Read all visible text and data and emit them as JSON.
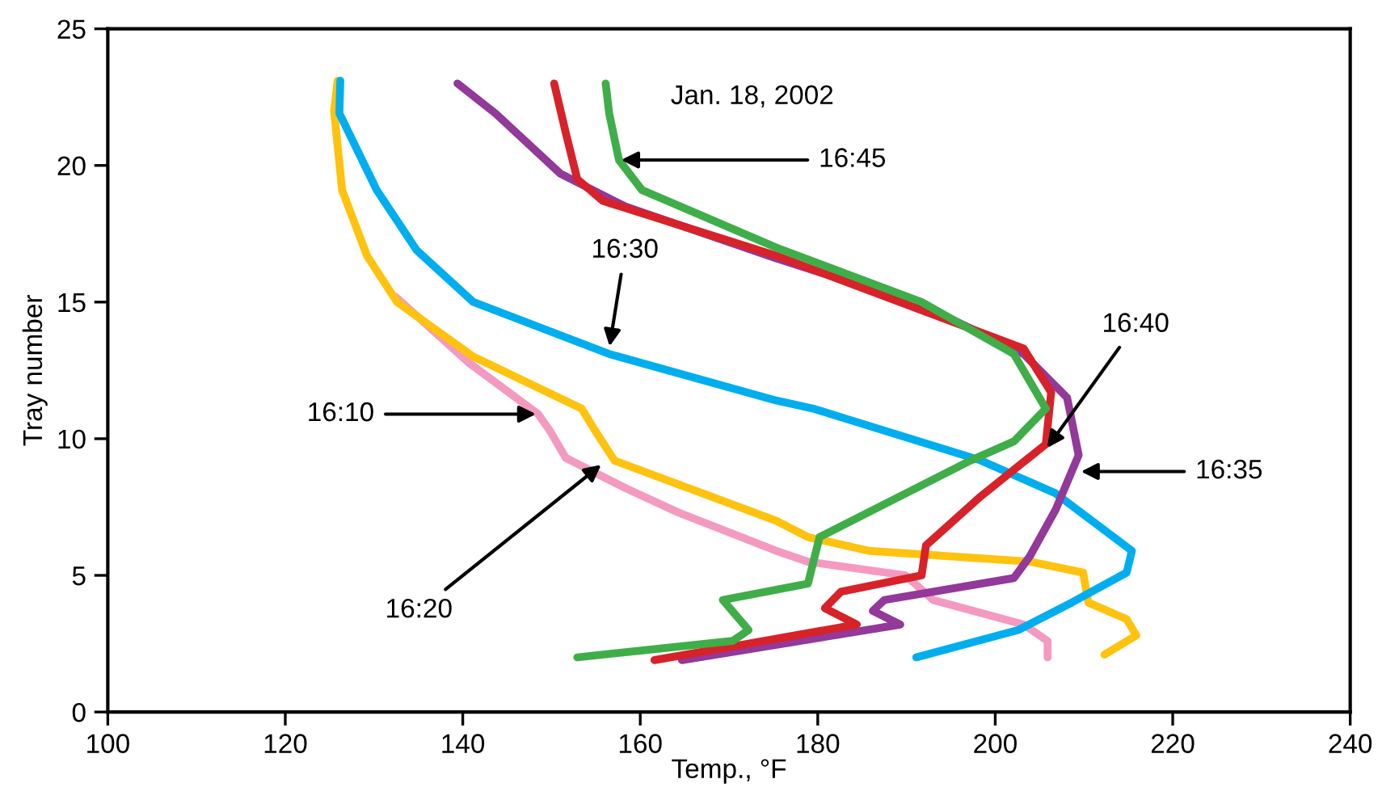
{
  "chart_data": {
    "type": "line",
    "xlabel": "Temp., °F",
    "ylabel": "Tray number",
    "xlim": [
      100,
      240
    ],
    "xticks": [
      100,
      120,
      140,
      160,
      180,
      200,
      220,
      240
    ],
    "ylim": [
      0,
      25
    ],
    "yticks": [
      0,
      5,
      10,
      15,
      20,
      25
    ],
    "grid": false,
    "legend": false,
    "marker": "none",
    "line_style": "solid",
    "series": [
      {
        "color": "#f49ac1",
        "x": [
          132.4,
          140.6,
          148.5,
          149.8,
          151.6,
          158.3,
          164.3,
          175.3,
          178.9,
          189.9,
          193.0,
          203.2,
          205.9,
          205.9
        ],
        "values": [
          15.2,
          12.8,
          10.9,
          10.3,
          9.3,
          8.2,
          7.3,
          5.9,
          5.5,
          5.0,
          4.1,
          3.2,
          2.6,
          2.0
        ]
      },
      {
        "color": "#ffc20e",
        "x": [
          125.9,
          125.5,
          126.4,
          129.2,
          132.6,
          141.2,
          153.4,
          154.9,
          157.1,
          175.3,
          178.9,
          185.7,
          203.9,
          209.9,
          210.5,
          214.8,
          215.9,
          212.3
        ],
        "values": [
          23.1,
          22.0,
          19.1,
          16.7,
          15.0,
          13.0,
          11.1,
          10.3,
          9.2,
          7.0,
          6.4,
          5.9,
          5.5,
          5.1,
          4.0,
          3.4,
          2.8,
          2.1
        ]
      },
      {
        "color": "#00aeef",
        "x": [
          126.2,
          126.1,
          130.3,
          134.8,
          141.2,
          156.5,
          175.3,
          179.5,
          198.4,
          206.8,
          215.4,
          214.8,
          208.6,
          202.6,
          191.1
        ],
        "values": [
          23.1,
          21.9,
          19.1,
          16.9,
          15.0,
          13.1,
          11.4,
          11.1,
          9.2,
          8.0,
          5.9,
          5.1,
          4.0,
          3.0,
          2.0
        ]
      },
      {
        "color": "#92399a",
        "x": [
          139.4,
          143.7,
          151.0,
          158.3,
          175.3,
          191.7,
          203.2,
          208.1,
          209.4,
          206.8,
          203.9,
          202.1,
          187.5,
          186.2,
          189.3,
          164.7
        ],
        "values": [
          23.0,
          21.9,
          19.7,
          18.5,
          16.6,
          14.9,
          13.1,
          11.5,
          9.4,
          7.4,
          5.7,
          4.9,
          4.1,
          3.7,
          3.2,
          1.9
        ]
      },
      {
        "color": "#d7222a",
        "x": [
          150.3,
          151.6,
          152.9,
          155.8,
          175.3,
          203.2,
          206.3,
          205.7,
          198.4,
          192.2,
          191.7,
          182.6,
          180.8,
          184.4,
          170.4,
          161.6
        ],
        "values": [
          23.0,
          21.2,
          19.5,
          18.7,
          16.7,
          13.3,
          11.7,
          9.8,
          7.9,
          6.1,
          5.0,
          4.4,
          3.8,
          3.2,
          2.4,
          1.9
        ]
      },
      {
        "color": "#3fae49",
        "x": [
          156.1,
          156.5,
          157.6,
          160.2,
          175.3,
          191.7,
          202.1,
          205.7,
          202.1,
          197.2,
          180.2,
          178.9,
          169.3,
          172.2,
          170.4,
          152.9
        ],
        "values": [
          23.0,
          21.9,
          20.2,
          19.1,
          17.0,
          15.0,
          13.1,
          11.1,
          9.9,
          9.2,
          6.4,
          4.7,
          4.1,
          3.0,
          2.6,
          2.0
        ]
      }
    ],
    "annotations": [
      "Jan. 18, 2002",
      {
        "text": "16:45",
        "x": 157.6,
        "y": 20.2
      },
      {
        "text": "16:30",
        "x": 156.5,
        "y": 13.3
      },
      {
        "text": "16:10",
        "x": 148.5,
        "y": 10.9
      },
      {
        "text": "16:20",
        "x": 155.8,
        "y": 9.1
      },
      {
        "text": "16:40",
        "x": 205.7,
        "y": 9.6
      },
      {
        "text": "16:35",
        "x": 209.4,
        "y": 8.8
      }
    ]
  }
}
